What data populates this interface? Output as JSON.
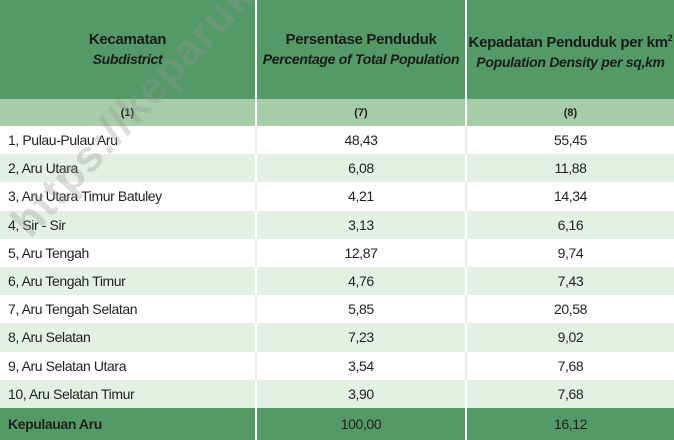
{
  "header": {
    "col1": {
      "main": "Kecamatan",
      "sub": "Subdistrict"
    },
    "col2": {
      "main": "Persentase Penduduk",
      "sub": "Percentage of Total Population"
    },
    "col3": {
      "main": "Kepadatan Penduduk per km",
      "sup": "2",
      "sub": "Population Density per sq,km"
    }
  },
  "col_numbers": [
    "(1)",
    "(7)",
    "(8)"
  ],
  "rows": [
    {
      "name": "1,  Pulau-Pulau Aru",
      "pct": "48,43",
      "density": "55,45"
    },
    {
      "name": "2,  Aru Utara",
      "pct": "6,08",
      "density": "11,88"
    },
    {
      "name": "3,  Aru Utara Timur Batuley",
      "pct": "4,21",
      "density": "14,34"
    },
    {
      "name": "4,  Sir - Sir",
      "pct": "3,13",
      "density": "6,16"
    },
    {
      "name": "5,  Aru Tengah",
      "pct": "12,87",
      "density": "9,74"
    },
    {
      "name": "6,  Aru Tengah Timur",
      "pct": "4,76",
      "density": "7,43"
    },
    {
      "name": "7,  Aru Tengah Selatan",
      "pct": "5,85",
      "density": "20,58"
    },
    {
      "name": "8,  Aru Selatan",
      "pct": "7,23",
      "density": "9,02"
    },
    {
      "name": "9,  Aru Selatan Utara",
      "pct": "3,54",
      "density": "7,68"
    },
    {
      "name": "10, Aru Selatan Timur",
      "pct": "3,90",
      "density": "7,68"
    }
  ],
  "total": {
    "name": "Kepulauan Aru",
    "pct": "100,00",
    "density": "16,12"
  },
  "watermark": "https://keparukab.bps.go.id",
  "colors": {
    "header_green": "#539a66",
    "number_row_green": "#a6cda8",
    "stripe_green": "#e3f0e3"
  }
}
